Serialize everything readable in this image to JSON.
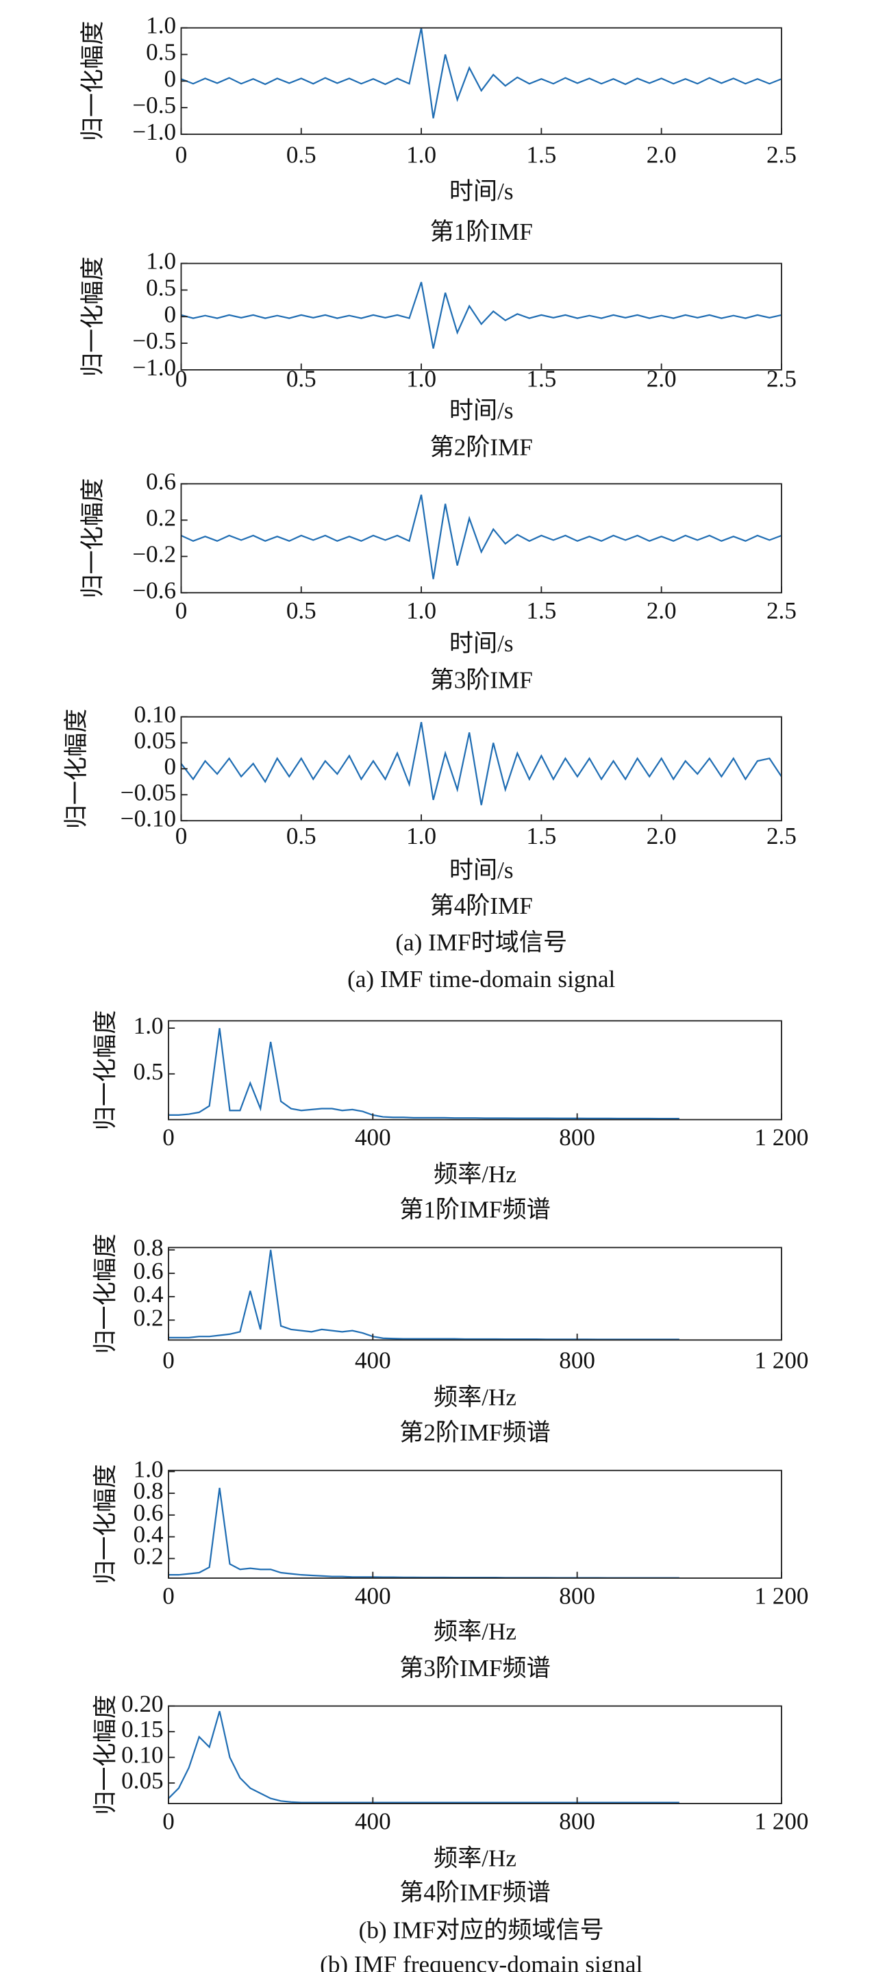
{
  "chart_data": [
    {
      "type": "line",
      "ylabel": "归一化幅度",
      "xlabel": "时间/s",
      "caption": "第1阶IMF",
      "x": [
        0,
        0.05,
        0.1,
        0.15,
        0.2,
        0.25,
        0.3,
        0.35,
        0.4,
        0.45,
        0.5,
        0.55,
        0.6,
        0.65,
        0.7,
        0.75,
        0.8,
        0.85,
        0.9,
        0.95,
        1.0,
        1.05,
        1.1,
        1.15,
        1.2,
        1.25,
        1.3,
        1.35,
        1.4,
        1.45,
        1.5,
        1.55,
        1.6,
        1.65,
        1.7,
        1.75,
        1.8,
        1.85,
        1.9,
        1.95,
        2.0,
        2.05,
        2.1,
        2.15,
        2.2,
        2.25,
        2.3,
        2.35,
        2.4,
        2.45,
        2.5
      ],
      "series": [
        {
          "color": "#1f6db3",
          "values": [
            0.04,
            -0.05,
            0.05,
            -0.04,
            0.06,
            -0.05,
            0.04,
            -0.06,
            0.05,
            -0.04,
            0.05,
            -0.05,
            0.06,
            -0.04,
            0.05,
            -0.05,
            0.04,
            -0.06,
            0.05,
            -0.05,
            1.0,
            -0.7,
            0.5,
            -0.35,
            0.25,
            -0.18,
            0.12,
            -0.09,
            0.07,
            -0.05,
            0.04,
            -0.05,
            0.06,
            -0.04,
            0.05,
            -0.05,
            0.04,
            -0.06,
            0.05,
            -0.04,
            0.05,
            -0.05,
            0.04,
            -0.05,
            0.06,
            -0.04,
            0.05,
            -0.05,
            0.04,
            -0.05,
            0.04
          ]
        }
      ],
      "xlim": [
        0,
        2.5
      ],
      "ylim": [
        -1,
        1
      ],
      "xticks": [
        0,
        0.5,
        {
          "value": 1,
          "label": "1.0"
        },
        1.5,
        {
          "value": 2,
          "label": "2.0"
        },
        2.5
      ],
      "yticks": [
        {
          "value": -1,
          "label": "−1.0"
        },
        {
          "value": -0.5,
          "label": "−0.5"
        },
        0,
        0.5,
        {
          "value": 1,
          "label": "1.0"
        }
      ]
    },
    {
      "type": "line",
      "ylabel": "归一化幅度",
      "xlabel": "时间/s",
      "caption": "第2阶IMF",
      "x": [
        0,
        0.05,
        0.1,
        0.15,
        0.2,
        0.25,
        0.3,
        0.35,
        0.4,
        0.45,
        0.5,
        0.55,
        0.6,
        0.65,
        0.7,
        0.75,
        0.8,
        0.85,
        0.9,
        0.95,
        1.0,
        1.05,
        1.1,
        1.15,
        1.2,
        1.25,
        1.3,
        1.35,
        1.4,
        1.45,
        1.5,
        1.55,
        1.6,
        1.65,
        1.7,
        1.75,
        1.8,
        1.85,
        1.9,
        1.95,
        2.0,
        2.05,
        2.1,
        2.15,
        2.2,
        2.25,
        2.3,
        2.35,
        2.4,
        2.45,
        2.5
      ],
      "series": [
        {
          "color": "#1f6db3",
          "values": [
            0.03,
            -0.03,
            0.02,
            -0.03,
            0.03,
            -0.02,
            0.03,
            -0.03,
            0.02,
            -0.03,
            0.03,
            -0.02,
            0.03,
            -0.03,
            0.02,
            -0.03,
            0.03,
            -0.02,
            0.03,
            -0.03,
            0.65,
            -0.6,
            0.45,
            -0.3,
            0.2,
            -0.14,
            0.1,
            -0.07,
            0.05,
            -0.03,
            0.03,
            -0.02,
            0.03,
            -0.03,
            0.02,
            -0.03,
            0.03,
            -0.02,
            0.03,
            -0.03,
            0.02,
            -0.03,
            0.03,
            -0.02,
            0.03,
            -0.03,
            0.02,
            -0.03,
            0.03,
            -0.02,
            0.03
          ]
        }
      ],
      "xlim": [
        0,
        2.5
      ],
      "ylim": [
        -1,
        1
      ],
      "xticks": [
        0,
        0.5,
        {
          "value": 1,
          "label": "1.0"
        },
        1.5,
        {
          "value": 2,
          "label": "2.0"
        },
        2.5
      ],
      "yticks": [
        {
          "value": -1,
          "label": "−1.0"
        },
        {
          "value": -0.5,
          "label": "−0.5"
        },
        0,
        0.5,
        {
          "value": 1,
          "label": "1.0"
        }
      ]
    },
    {
      "type": "line",
      "ylabel": "归一化幅度",
      "xlabel": "时间/s",
      "caption": "第3阶IMF",
      "x": [
        0,
        0.05,
        0.1,
        0.15,
        0.2,
        0.25,
        0.3,
        0.35,
        0.4,
        0.45,
        0.5,
        0.55,
        0.6,
        0.65,
        0.7,
        0.75,
        0.8,
        0.85,
        0.9,
        0.95,
        1.0,
        1.05,
        1.1,
        1.15,
        1.2,
        1.25,
        1.3,
        1.35,
        1.4,
        1.45,
        1.5,
        1.55,
        1.6,
        1.65,
        1.7,
        1.75,
        1.8,
        1.85,
        1.9,
        1.95,
        2.0,
        2.05,
        2.1,
        2.15,
        2.2,
        2.25,
        2.3,
        2.35,
        2.4,
        2.45,
        2.5
      ],
      "series": [
        {
          "color": "#1f6db3",
          "values": [
            0.03,
            -0.03,
            0.02,
            -0.03,
            0.03,
            -0.02,
            0.03,
            -0.03,
            0.02,
            -0.03,
            0.03,
            -0.02,
            0.03,
            -0.03,
            0.02,
            -0.03,
            0.03,
            -0.02,
            0.03,
            -0.03,
            0.48,
            -0.45,
            0.38,
            -0.3,
            0.22,
            -0.15,
            0.1,
            -0.06,
            0.04,
            -0.03,
            0.03,
            -0.02,
            0.03,
            -0.03,
            0.02,
            -0.03,
            0.03,
            -0.02,
            0.03,
            -0.03,
            0.02,
            -0.03,
            0.03,
            -0.02,
            0.03,
            -0.03,
            0.02,
            -0.03,
            0.03,
            -0.02,
            0.03
          ]
        }
      ],
      "xlim": [
        0,
        2.5
      ],
      "ylim": [
        -0.6,
        0.6
      ],
      "xticks": [
        0,
        0.5,
        {
          "value": 1,
          "label": "1.0"
        },
        1.5,
        {
          "value": 2,
          "label": "2.0"
        },
        2.5
      ],
      "yticks": [
        {
          "value": -0.6,
          "label": "−0.6"
        },
        {
          "value": -0.2,
          "label": "−0.2"
        },
        0.2,
        0.6
      ]
    },
    {
      "type": "line",
      "ylabel": "归一化幅度",
      "xlabel": "时间/s",
      "caption": "第4阶IMF",
      "x": [
        0,
        0.05,
        0.1,
        0.15,
        0.2,
        0.25,
        0.3,
        0.35,
        0.4,
        0.45,
        0.5,
        0.55,
        0.6,
        0.65,
        0.7,
        0.75,
        0.8,
        0.85,
        0.9,
        0.95,
        1.0,
        1.05,
        1.1,
        1.15,
        1.2,
        1.25,
        1.3,
        1.35,
        1.4,
        1.45,
        1.5,
        1.55,
        1.6,
        1.65,
        1.7,
        1.75,
        1.8,
        1.85,
        1.9,
        1.95,
        2.0,
        2.05,
        2.1,
        2.15,
        2.2,
        2.25,
        2.3,
        2.35,
        2.4,
        2.45,
        2.5
      ],
      "series": [
        {
          "color": "#1f6db3",
          "values": [
            0.01,
            -0.02,
            0.015,
            -0.01,
            0.02,
            -0.015,
            0.01,
            -0.025,
            0.02,
            -0.015,
            0.02,
            -0.02,
            0.015,
            -0.01,
            0.025,
            -0.02,
            0.015,
            -0.02,
            0.03,
            -0.03,
            0.09,
            -0.06,
            0.03,
            -0.04,
            0.07,
            -0.07,
            0.05,
            -0.04,
            0.03,
            -0.02,
            0.025,
            -0.02,
            0.02,
            -0.015,
            0.02,
            -0.02,
            0.015,
            -0.02,
            0.02,
            -0.015,
            0.02,
            -0.02,
            0.015,
            -0.01,
            0.02,
            -0.015,
            0.02,
            -0.02,
            0.015,
            0.02,
            -0.015
          ]
        }
      ],
      "xlim": [
        0,
        2.5
      ],
      "ylim": [
        -0.1,
        0.1
      ],
      "xticks": [
        0,
        0.5,
        {
          "value": 1,
          "label": "1.0"
        },
        1.5,
        {
          "value": 2,
          "label": "2.0"
        },
        2.5
      ],
      "yticks": [
        {
          "value": -0.1,
          "label": "−0.10"
        },
        {
          "value": -0.05,
          "label": "−0.05"
        },
        0,
        0.05,
        {
          "value": 0.1,
          "label": "0.10"
        }
      ]
    },
    {
      "type": "line",
      "ylabel": "归一化幅度",
      "xlabel": "频率/Hz",
      "caption": "第1阶IMF频谱",
      "x": [
        0,
        20,
        40,
        60,
        80,
        100,
        120,
        140,
        160,
        180,
        200,
        220,
        240,
        260,
        280,
        300,
        320,
        340,
        360,
        380,
        400,
        420,
        440,
        460,
        480,
        500,
        520,
        540,
        560,
        580,
        600,
        620,
        640,
        660,
        680,
        700,
        720,
        740,
        760,
        780,
        800,
        820,
        840,
        860,
        880,
        900,
        920,
        940,
        960,
        980,
        1000
      ],
      "series": [
        {
          "color": "#1f6db3",
          "values": [
            0.05,
            0.05,
            0.06,
            0.08,
            0.15,
            1.0,
            0.1,
            0.1,
            0.4,
            0.12,
            0.85,
            0.2,
            0.12,
            0.1,
            0.11,
            0.12,
            0.12,
            0.1,
            0.11,
            0.09,
            0.05,
            0.03,
            0.025,
            0.025,
            0.02,
            0.02,
            0.02,
            0.02,
            0.018,
            0.018,
            0.018,
            0.016,
            0.016,
            0.016,
            0.015,
            0.015,
            0.015,
            0.015,
            0.014,
            0.014,
            0.014,
            0.013,
            0.013,
            0.013,
            0.012,
            0.012,
            0.012,
            0.012,
            0.011,
            0.011,
            0.011
          ]
        }
      ],
      "xlim": [
        0,
        1200
      ],
      "ylim": [
        0,
        1.08
      ],
      "xticks": [
        0,
        400,
        800,
        {
          "value": 1200,
          "label": "1 200"
        }
      ],
      "yticks": [
        0.5,
        {
          "value": 1,
          "label": "1.0"
        }
      ]
    },
    {
      "type": "line",
      "ylabel": "归一化幅度",
      "xlabel": "频率/Hz",
      "caption": "第2阶IMF频谱",
      "x": [
        0,
        20,
        40,
        60,
        80,
        100,
        120,
        140,
        160,
        180,
        200,
        220,
        240,
        260,
        280,
        300,
        320,
        340,
        360,
        380,
        400,
        420,
        440,
        460,
        480,
        500,
        520,
        540,
        560,
        580,
        600,
        620,
        640,
        660,
        680,
        700,
        720,
        740,
        760,
        780,
        800,
        820,
        840,
        860,
        880,
        900,
        920,
        940,
        960,
        980,
        1000
      ],
      "series": [
        {
          "color": "#1f6db3",
          "values": [
            0.05,
            0.05,
            0.05,
            0.06,
            0.06,
            0.07,
            0.08,
            0.1,
            0.45,
            0.12,
            0.8,
            0.15,
            0.12,
            0.11,
            0.1,
            0.12,
            0.11,
            0.1,
            0.11,
            0.09,
            0.06,
            0.045,
            0.042,
            0.04,
            0.04,
            0.04,
            0.04,
            0.04,
            0.04,
            0.038,
            0.038,
            0.038,
            0.038,
            0.037,
            0.037,
            0.037,
            0.037,
            0.036,
            0.036,
            0.036,
            0.036,
            0.036,
            0.035,
            0.035,
            0.035,
            0.035,
            0.035,
            0.035,
            0.035,
            0.035,
            0.035
          ]
        }
      ],
      "xlim": [
        0,
        1200
      ],
      "ylim": [
        0.03,
        0.82
      ],
      "xticks": [
        0,
        400,
        800,
        {
          "value": 1200,
          "label": "1 200"
        }
      ],
      "yticks": [
        0.2,
        0.4,
        0.6,
        0.8
      ]
    },
    {
      "type": "line",
      "ylabel": "归一化幅度",
      "xlabel": "频率/Hz",
      "caption": "第3阶IMF频谱",
      "x": [
        0,
        20,
        40,
        60,
        80,
        100,
        120,
        140,
        160,
        180,
        200,
        220,
        240,
        260,
        280,
        300,
        320,
        340,
        360,
        380,
        400,
        420,
        440,
        460,
        480,
        500,
        520,
        540,
        560,
        580,
        600,
        620,
        640,
        660,
        680,
        700,
        720,
        740,
        760,
        780,
        800,
        820,
        840,
        860,
        880,
        900,
        920,
        940,
        960,
        980,
        1000
      ],
      "series": [
        {
          "color": "#1f6db3",
          "values": [
            0.05,
            0.05,
            0.06,
            0.07,
            0.12,
            0.85,
            0.15,
            0.1,
            0.11,
            0.1,
            0.1,
            0.07,
            0.06,
            0.05,
            0.045,
            0.04,
            0.035,
            0.035,
            0.03,
            0.03,
            0.03,
            0.028,
            0.028,
            0.027,
            0.027,
            0.026,
            0.026,
            0.026,
            0.025,
            0.025,
            0.025,
            0.025,
            0.025,
            0.024,
            0.024,
            0.024,
            0.024,
            0.024,
            0.023,
            0.023,
            0.023,
            0.023,
            0.023,
            0.022,
            0.022,
            0.022,
            0.022,
            0.022,
            0.022,
            0.022,
            0.022
          ]
        }
      ],
      "xlim": [
        0,
        1200
      ],
      "ylim": [
        0.02,
        1.01
      ],
      "xticks": [
        0,
        400,
        800,
        {
          "value": 1200,
          "label": "1 200"
        }
      ],
      "yticks": [
        0.2,
        0.4,
        0.6,
        0.8,
        {
          "value": 1,
          "label": "1.0"
        }
      ]
    },
    {
      "type": "line",
      "ylabel": "归一化幅度",
      "xlabel": "频率/Hz",
      "caption": "第4阶IMF频谱",
      "x": [
        0,
        20,
        40,
        60,
        80,
        100,
        120,
        140,
        160,
        180,
        200,
        220,
        240,
        260,
        280,
        300,
        320,
        340,
        360,
        380,
        400,
        420,
        440,
        460,
        480,
        500,
        520,
        540,
        560,
        580,
        600,
        620,
        640,
        660,
        680,
        700,
        720,
        740,
        760,
        780,
        800,
        820,
        840,
        860,
        880,
        900,
        920,
        940,
        960,
        980,
        1000
      ],
      "series": [
        {
          "color": "#1f6db3",
          "values": [
            0.02,
            0.04,
            0.08,
            0.14,
            0.12,
            0.19,
            0.1,
            0.06,
            0.04,
            0.03,
            0.02,
            0.015,
            0.013,
            0.012,
            0.012,
            0.012,
            0.012,
            0.012,
            0.012,
            0.012,
            0.012,
            0.012,
            0.012,
            0.012,
            0.012,
            0.012,
            0.012,
            0.012,
            0.012,
            0.012,
            0.012,
            0.012,
            0.012,
            0.012,
            0.012,
            0.012,
            0.012,
            0.012,
            0.012,
            0.012,
            0.012,
            0.012,
            0.012,
            0.012,
            0.012,
            0.012,
            0.012,
            0.012,
            0.012,
            0.012,
            0.012
          ]
        }
      ],
      "xlim": [
        0,
        1200
      ],
      "ylim": [
        0.01,
        0.2
      ],
      "xticks": [
        0,
        400,
        800,
        {
          "value": 1200,
          "label": "1 200"
        }
      ],
      "yticks": [
        0.05,
        {
          "value": 0.1,
          "label": "0.10"
        },
        0.15,
        {
          "value": 0.2,
          "label": "0.20"
        }
      ]
    }
  ],
  "captions": [
    "(a) IMF时域信号",
    "(a) IMF time-domain signal",
    "(b) IMF对应的频域信号",
    "(b) IMF frequency-domain signal"
  ]
}
